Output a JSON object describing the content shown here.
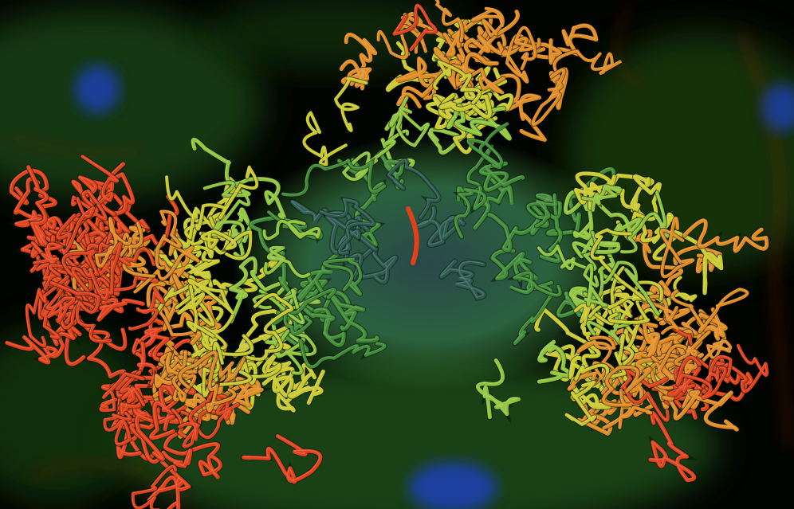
{
  "palette": {
    "background": "#020402",
    "cell_green": "#1f5a14",
    "cell_red": "#8a1e0c",
    "nucleus_blue": "#1a3fb0",
    "coil_core": "#2d5a50",
    "coil_mid": "#3f8a35",
    "coil_light": "#8fc33a",
    "coil_yellow": "#c9c82c",
    "coil_orange": "#e08a22",
    "coil_red": "#e0401a"
  },
  "scene": {
    "subject": "chromatin-polymer-icon",
    "backdrop": "fluorescent-cell-icon"
  }
}
